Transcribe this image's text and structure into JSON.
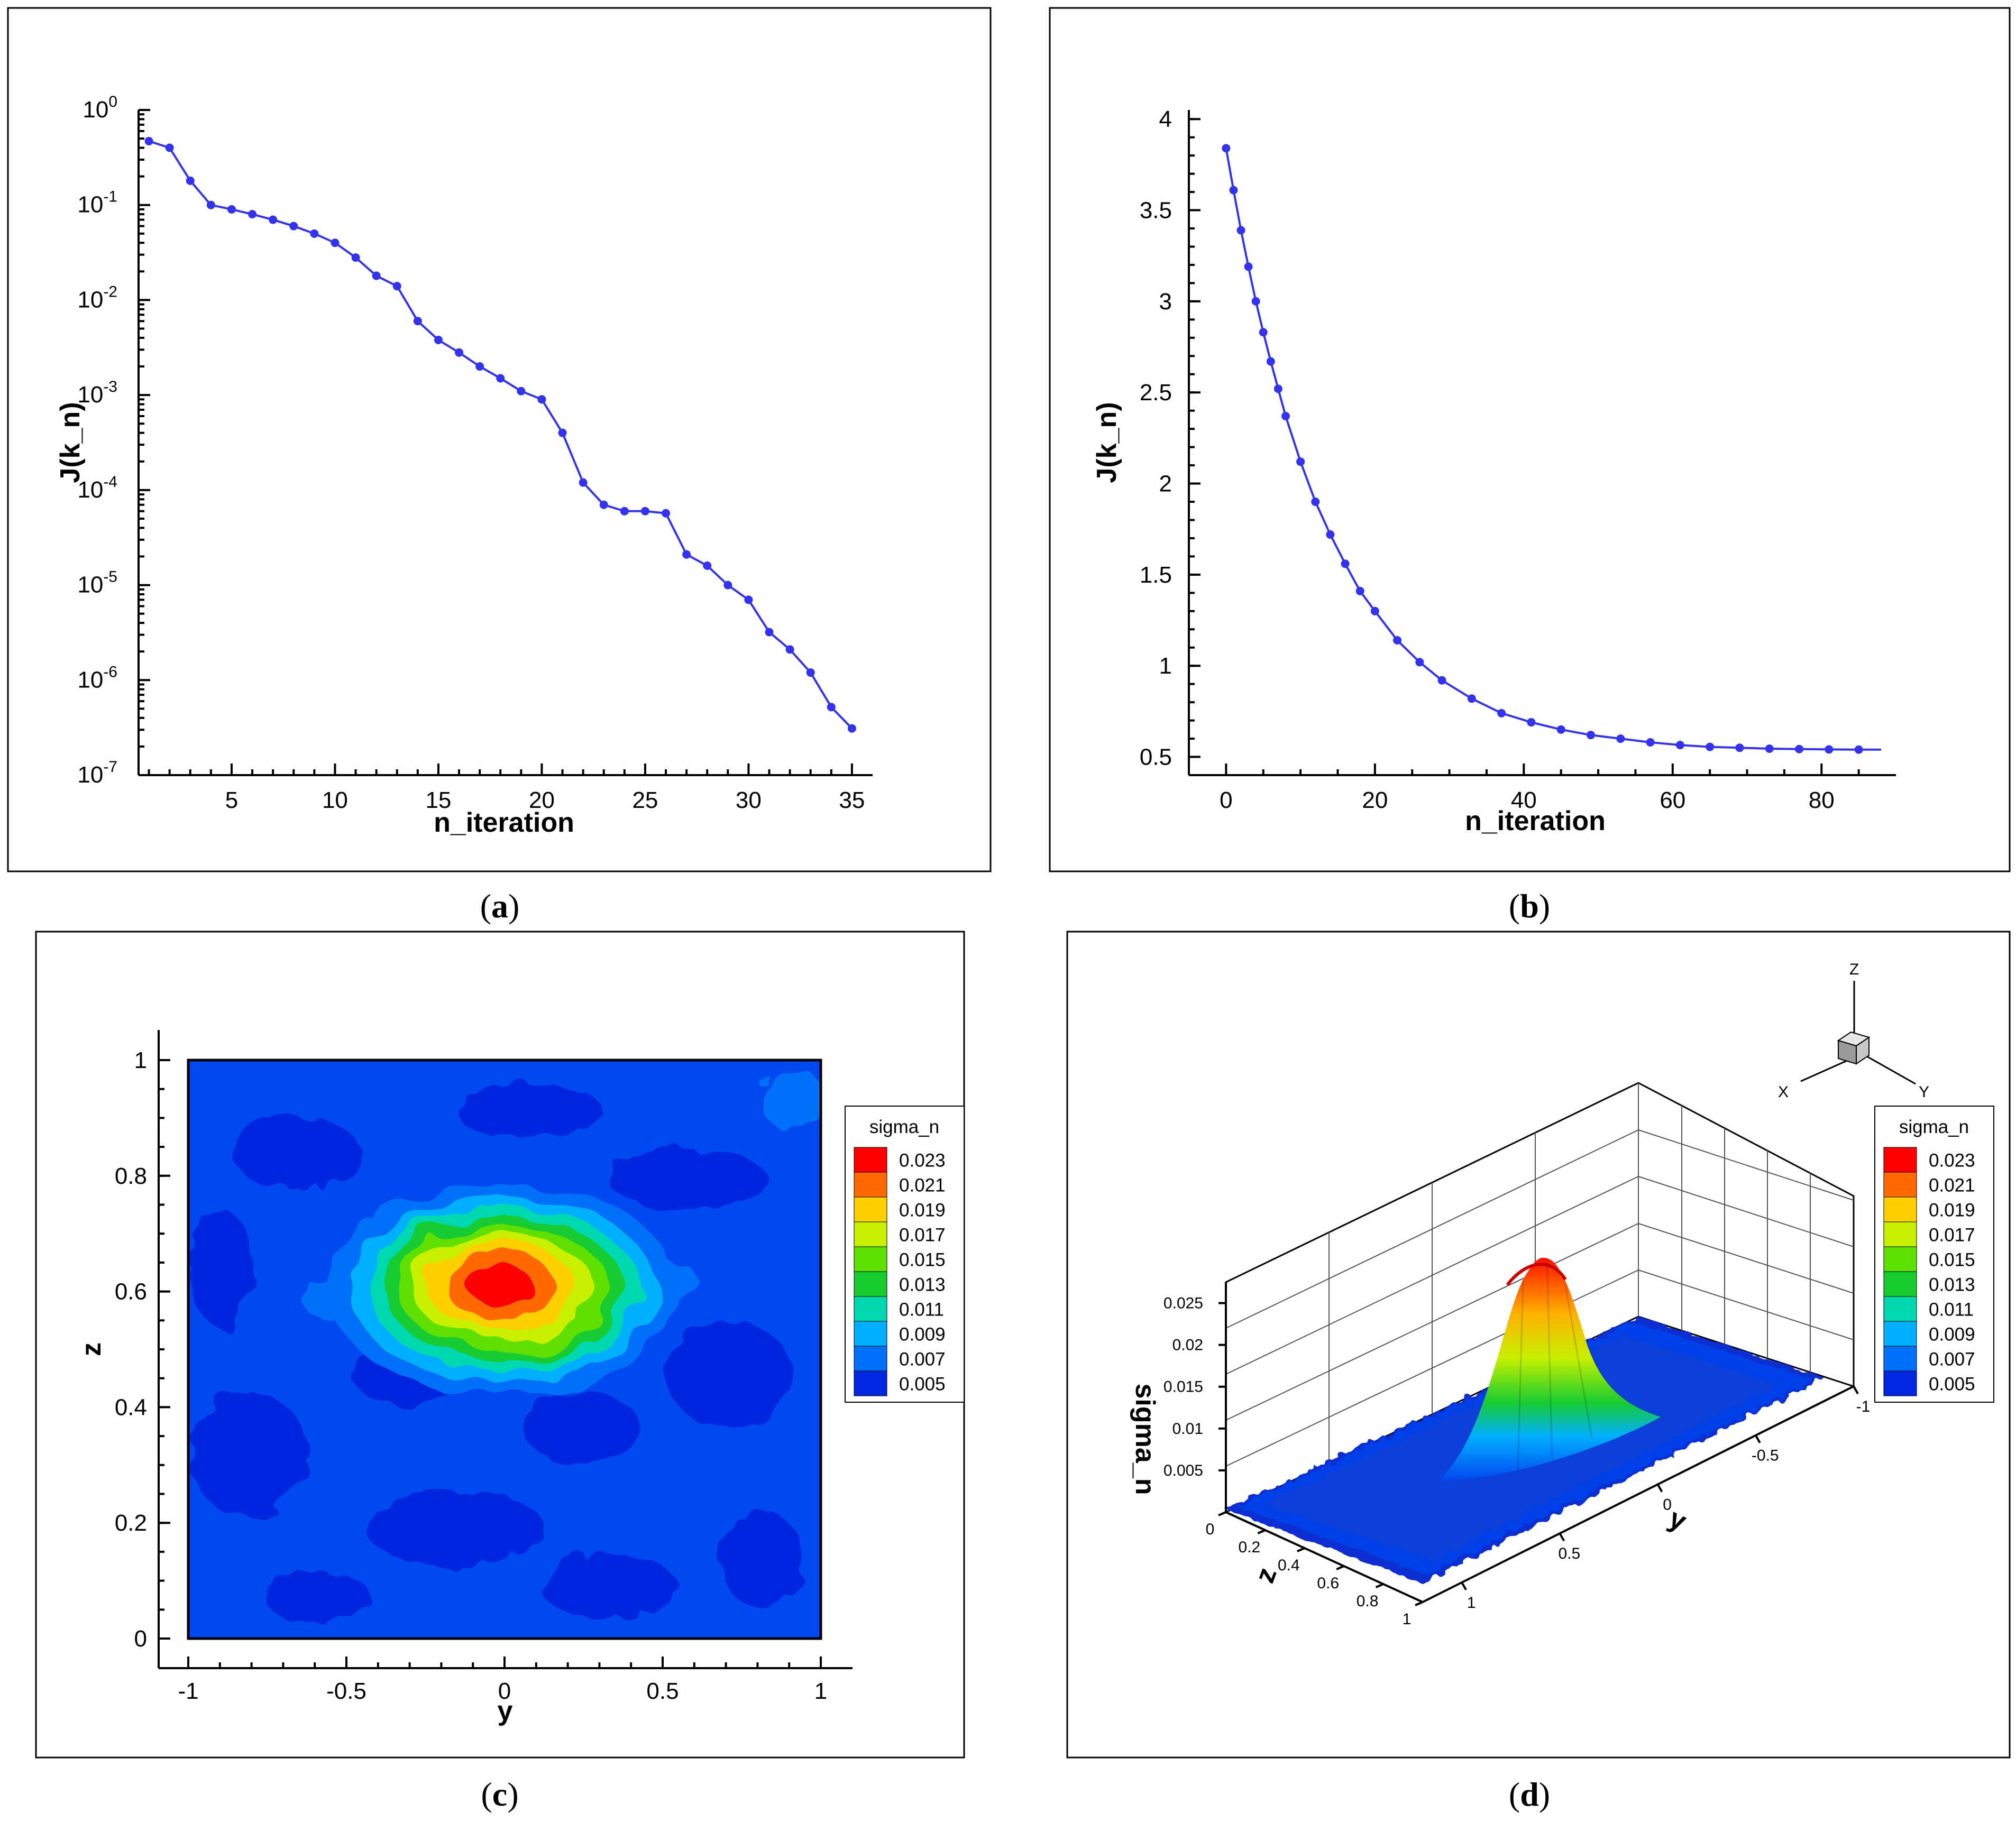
{
  "captions": {
    "a": "a",
    "b": "b",
    "c": "c",
    "d": "d"
  },
  "chart_data": [
    {
      "panel": "a",
      "type": "line",
      "yscale": "log",
      "xlabel": "n_iteration",
      "ylabel": "J(k_n)",
      "xlim": [
        0.5,
        36
      ],
      "ylim_exp": [
        -7,
        0
      ],
      "x_ticks": [
        5,
        10,
        15,
        20,
        25,
        30,
        35
      ],
      "y_ticks": [
        "10^0",
        "10^-1",
        "10^-2",
        "10^-3",
        "10^-4",
        "10^-5",
        "10^-6",
        "10^-7"
      ],
      "color": "#3333ee",
      "x": [
        1,
        2,
        3,
        4,
        5,
        6,
        7,
        8,
        9,
        10,
        11,
        12,
        13,
        14,
        15,
        16,
        17,
        18,
        19,
        20,
        21,
        22,
        23,
        24,
        25,
        26,
        27,
        28,
        29,
        30,
        31,
        32,
        33,
        34,
        35
      ],
      "values": [
        0.47,
        0.4,
        0.18,
        0.1,
        0.09,
        0.08,
        0.07,
        0.06,
        0.05,
        0.04,
        0.028,
        0.018,
        0.014,
        0.006,
        0.0038,
        0.0028,
        0.002,
        0.0015,
        0.0011,
        0.0009,
        0.0004,
        0.00012,
        7e-05,
        6e-05,
        6e-05,
        5.7e-05,
        2.1e-05,
        1.6e-05,
        1e-05,
        7e-06,
        3.2e-06,
        2.1e-06,
        1.2e-06,
        5.2e-07,
        3.1e-07
      ]
    },
    {
      "panel": "b",
      "type": "line",
      "xlabel": "n_iteration",
      "ylabel": "J(k_n)",
      "xlim": [
        -5,
        90
      ],
      "ylim": [
        0.4,
        4.05
      ],
      "x_ticks": [
        0,
        20,
        40,
        60,
        80
      ],
      "y_ticks": [
        0.5,
        1,
        1.5,
        2,
        2.5,
        3,
        3.5,
        4
      ],
      "color": "#3333ee",
      "x": [
        0,
        1,
        2,
        3,
        4,
        5,
        6,
        7,
        8,
        10,
        12,
        14,
        16,
        18,
        20,
        23,
        26,
        29,
        33,
        37,
        41,
        45,
        49,
        53,
        57,
        61,
        65,
        69,
        73,
        77,
        81,
        85,
        88
      ],
      "values": [
        3.84,
        3.61,
        3.39,
        3.19,
        3.0,
        2.83,
        2.67,
        2.52,
        2.37,
        2.12,
        1.9,
        1.72,
        1.56,
        1.41,
        1.3,
        1.14,
        1.02,
        0.92,
        0.82,
        0.74,
        0.69,
        0.65,
        0.62,
        0.6,
        0.58,
        0.565,
        0.555,
        0.55,
        0.545,
        0.543,
        0.541,
        0.54,
        0.54
      ]
    },
    {
      "panel": "c",
      "type": "heatmap",
      "xlabel": "y",
      "ylabel": "z",
      "xlim": [
        -1,
        1
      ],
      "ylim": [
        0,
        1
      ],
      "x_ticks": [
        "-1",
        "-0.5",
        "0",
        "0.5",
        "1"
      ],
      "y_ticks": [
        "0",
        "0.2",
        "0.4",
        "0.6",
        "0.8",
        "1"
      ],
      "peak": {
        "y": 0.0,
        "z": 0.61,
        "value": 0.023
      },
      "background_range": [
        0.005,
        0.007
      ],
      "legend_title": "sigma_n"
    },
    {
      "panel": "d",
      "type": "surface",
      "xlabel": "y",
      "ylabel": "z",
      "zlabel": "sigma_n",
      "y_ticks": [
        "1",
        "0.5",
        "0",
        "-0.5",
        "-1"
      ],
      "z_ticks": [
        "0",
        "0.2",
        "0.4",
        "0.6",
        "0.8",
        "1"
      ],
      "sigma_ticks": [
        "0.005",
        "0.01",
        "0.015",
        "0.02",
        "0.025"
      ],
      "peak": {
        "y": 0.0,
        "z": 0.61,
        "value": 0.025
      },
      "axis_triad": {
        "z": "Z",
        "x": "X",
        "y": "Y"
      },
      "legend_title": "sigma_n"
    }
  ],
  "legend": {
    "title": "sigma_n",
    "levels": [
      "0.023",
      "0.021",
      "0.019",
      "0.017",
      "0.015",
      "0.013",
      "0.011",
      "0.009",
      "0.007",
      "0.005"
    ],
    "colors": [
      "#ff0000",
      "#ff6a00",
      "#ffd000",
      "#c8f000",
      "#5ee000",
      "#18cc30",
      "#00d8b0",
      "#00b0ff",
      "#0070f8",
      "#0028e0"
    ]
  }
}
